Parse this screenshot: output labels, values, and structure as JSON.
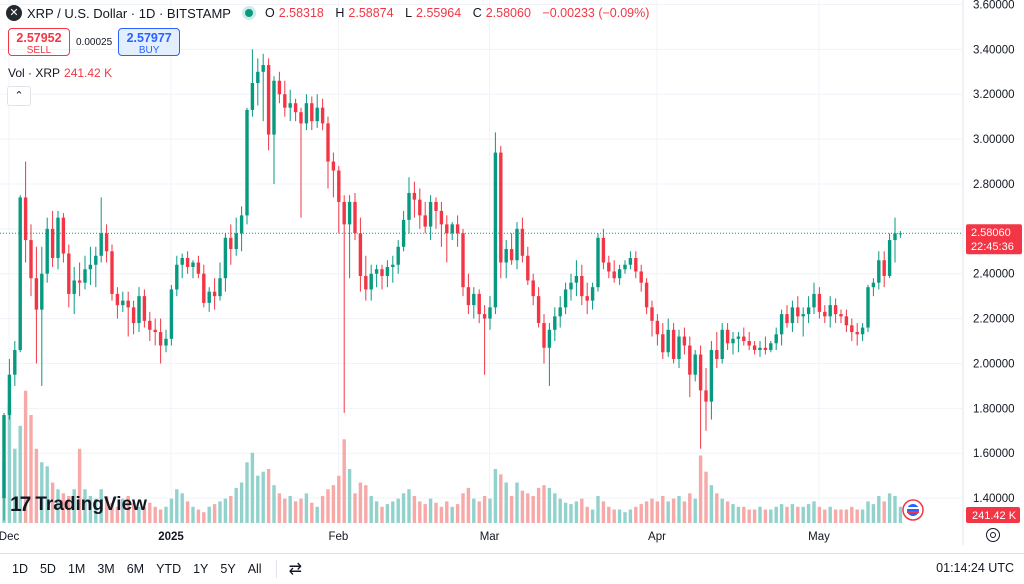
{
  "header": {
    "symbol_logo": "✕",
    "title": "XRP / U.S. Dollar · 1D · BITSTAMP",
    "ohlc": {
      "o_label": "O",
      "o": "2.58318",
      "h_label": "H",
      "h": "2.58874",
      "l_label": "L",
      "l": "2.55964",
      "c_label": "C",
      "c": "2.58060",
      "change": "−0.00233 (−0.09%)"
    }
  },
  "trade": {
    "sell_price": "2.57952",
    "sell_label": "SELL",
    "spread": "0.00025",
    "buy_price": "2.57977",
    "buy_label": "BUY"
  },
  "volume_legend": {
    "label": "Vol · XRP",
    "value": "241.42 K"
  },
  "branding": {
    "name": "TradingView"
  },
  "price_label": {
    "value": "2.58060",
    "countdown": "22:45:36"
  },
  "volume_label": "241.42 K",
  "bottom_bar": {
    "ranges": [
      "1D",
      "5D",
      "1M",
      "3M",
      "6M",
      "YTD",
      "1Y",
      "5Y",
      "All"
    ],
    "compare_icon": "compare-icon",
    "clock": "01:14:24 UTC"
  },
  "colors": {
    "up": "#089981",
    "down": "#f23645",
    "up_volume": "#92d2cc",
    "down_volume": "#f7a9a7",
    "accent": "#2962ff"
  },
  "chart_data": {
    "type": "candlestick",
    "y_axis": {
      "ticks": [
        "3.60000",
        "3.40000",
        "3.20000",
        "3.00000",
        "2.80000",
        "2.60000",
        "2.40000",
        "2.20000",
        "2.00000",
        "1.80000",
        "1.60000",
        "1.40000"
      ],
      "ylim": [
        1.28,
        3.62
      ]
    },
    "x_axis": {
      "ticks": [
        "Dec",
        "2025",
        "Feb",
        "Mar",
        "Apr",
        "May"
      ]
    },
    "current_price": 2.5806,
    "grid": true,
    "ohlc": [
      [
        1.4,
        1.78,
        1.3,
        1.77
      ],
      [
        1.77,
        2.02,
        1.75,
        1.95
      ],
      [
        1.95,
        2.1,
        1.9,
        2.06
      ],
      [
        2.06,
        2.75,
        2.05,
        2.74
      ],
      [
        2.74,
        2.9,
        2.45,
        2.55
      ],
      [
        2.55,
        2.62,
        2.3,
        2.38
      ],
      [
        2.38,
        2.52,
        2.0,
        2.24
      ],
      [
        2.24,
        2.52,
        1.9,
        2.4
      ],
      [
        2.4,
        2.65,
        2.36,
        2.6
      ],
      [
        2.6,
        2.68,
        2.43,
        2.47
      ],
      [
        2.47,
        2.68,
        2.42,
        2.65
      ],
      [
        2.65,
        2.67,
        2.45,
        2.49
      ],
      [
        2.49,
        2.53,
        2.25,
        2.31
      ],
      [
        2.31,
        2.43,
        2.22,
        2.37
      ],
      [
        2.37,
        2.45,
        2.3,
        2.36
      ],
      [
        2.36,
        2.48,
        2.33,
        2.42
      ],
      [
        2.42,
        2.52,
        2.35,
        2.44
      ],
      [
        2.44,
        2.52,
        2.34,
        2.48
      ],
      [
        2.48,
        2.74,
        2.45,
        2.58
      ],
      [
        2.58,
        2.62,
        2.45,
        2.5
      ],
      [
        2.5,
        2.53,
        2.28,
        2.31
      ],
      [
        2.31,
        2.34,
        2.2,
        2.26
      ],
      [
        2.26,
        2.32,
        2.23,
        2.28
      ],
      [
        2.28,
        2.32,
        2.12,
        2.25
      ],
      [
        2.25,
        2.28,
        2.13,
        2.18
      ],
      [
        2.18,
        2.34,
        2.14,
        2.3
      ],
      [
        2.3,
        2.33,
        2.16,
        2.19
      ],
      [
        2.19,
        2.23,
        2.1,
        2.15
      ],
      [
        2.15,
        2.2,
        2.08,
        2.14
      ],
      [
        2.14,
        2.2,
        2.0,
        2.08
      ],
      [
        2.08,
        2.15,
        2.05,
        2.11
      ],
      [
        2.11,
        2.35,
        2.08,
        2.33
      ],
      [
        2.33,
        2.48,
        2.3,
        2.44
      ],
      [
        2.44,
        2.49,
        2.38,
        2.47
      ],
      [
        2.47,
        2.5,
        2.4,
        2.43
      ],
      [
        2.43,
        2.46,
        2.38,
        2.45
      ],
      [
        2.45,
        2.48,
        2.38,
        2.4
      ],
      [
        2.4,
        2.44,
        2.25,
        2.27
      ],
      [
        2.27,
        2.34,
        2.23,
        2.32
      ],
      [
        2.32,
        2.38,
        2.24,
        2.3
      ],
      [
        2.3,
        2.45,
        2.28,
        2.38
      ],
      [
        2.38,
        2.58,
        2.32,
        2.56
      ],
      [
        2.56,
        2.62,
        2.44,
        2.51
      ],
      [
        2.51,
        2.65,
        2.48,
        2.58
      ],
      [
        2.58,
        2.7,
        2.5,
        2.66
      ],
      [
        2.66,
        3.14,
        2.62,
        3.13
      ],
      [
        3.13,
        3.4,
        3.1,
        3.25
      ],
      [
        3.25,
        3.36,
        3.15,
        3.3
      ],
      [
        3.3,
        3.38,
        3.08,
        3.33
      ],
      [
        3.33,
        3.36,
        2.95,
        3.02
      ],
      [
        3.02,
        3.28,
        2.8,
        3.26
      ],
      [
        3.26,
        3.3,
        3.16,
        3.2
      ],
      [
        3.2,
        3.26,
        3.1,
        3.14
      ],
      [
        3.14,
        3.22,
        3.08,
        3.16
      ],
      [
        3.16,
        3.18,
        3.08,
        3.12
      ],
      [
        3.12,
        3.14,
        2.65,
        3.07
      ],
      [
        3.07,
        3.2,
        3.04,
        3.16
      ],
      [
        3.16,
        3.19,
        3.04,
        3.08
      ],
      [
        3.08,
        3.2,
        3.05,
        3.14
      ],
      [
        3.14,
        3.18,
        3.04,
        3.07
      ],
      [
        3.07,
        3.1,
        2.78,
        2.9
      ],
      [
        2.9,
        2.94,
        2.74,
        2.86
      ],
      [
        2.86,
        2.88,
        2.58,
        2.72
      ],
      [
        2.72,
        2.75,
        1.78,
        2.62
      ],
      [
        2.62,
        2.75,
        2.38,
        2.72
      ],
      [
        2.72,
        2.76,
        2.55,
        2.58
      ],
      [
        2.58,
        2.65,
        2.32,
        2.39
      ],
      [
        2.39,
        2.48,
        2.28,
        2.33
      ],
      [
        2.33,
        2.44,
        2.28,
        2.4
      ],
      [
        2.4,
        2.44,
        2.34,
        2.42
      ],
      [
        2.42,
        2.44,
        2.33,
        2.39
      ],
      [
        2.39,
        2.46,
        2.34,
        2.43
      ],
      [
        2.43,
        2.48,
        2.36,
        2.44
      ],
      [
        2.44,
        2.55,
        2.4,
        2.52
      ],
      [
        2.52,
        2.68,
        2.5,
        2.64
      ],
      [
        2.64,
        2.83,
        2.58,
        2.76
      ],
      [
        2.76,
        2.81,
        2.65,
        2.73
      ],
      [
        2.73,
        2.78,
        2.6,
        2.66
      ],
      [
        2.66,
        2.72,
        2.58,
        2.61
      ],
      [
        2.61,
        2.75,
        2.55,
        2.72
      ],
      [
        2.72,
        2.74,
        2.6,
        2.68
      ],
      [
        2.68,
        2.72,
        2.52,
        2.62
      ],
      [
        2.62,
        2.66,
        2.45,
        2.58
      ],
      [
        2.58,
        2.63,
        2.55,
        2.62
      ],
      [
        2.62,
        2.66,
        2.52,
        2.58
      ],
      [
        2.58,
        2.6,
        2.3,
        2.34
      ],
      [
        2.34,
        2.4,
        2.22,
        2.26
      ],
      [
        2.26,
        2.34,
        2.2,
        2.31
      ],
      [
        2.31,
        2.33,
        2.18,
        2.22
      ],
      [
        2.22,
        2.26,
        1.95,
        2.2
      ],
      [
        2.2,
        2.3,
        2.15,
        2.25
      ],
      [
        2.25,
        3.03,
        2.22,
        2.94
      ],
      [
        2.94,
        2.97,
        2.38,
        2.45
      ],
      [
        2.45,
        2.55,
        2.38,
        2.51
      ],
      [
        2.51,
        2.58,
        2.44,
        2.46
      ],
      [
        2.46,
        2.63,
        2.42,
        2.6
      ],
      [
        2.6,
        2.65,
        2.45,
        2.48
      ],
      [
        2.48,
        2.52,
        2.35,
        2.37
      ],
      [
        2.37,
        2.4,
        2.26,
        2.3
      ],
      [
        2.3,
        2.34,
        2.16,
        2.18
      ],
      [
        2.18,
        2.22,
        2.0,
        2.07
      ],
      [
        2.07,
        2.18,
        1.9,
        2.15
      ],
      [
        2.15,
        2.25,
        2.1,
        2.21
      ],
      [
        2.21,
        2.3,
        2.16,
        2.25
      ],
      [
        2.25,
        2.36,
        2.22,
        2.33
      ],
      [
        2.33,
        2.4,
        2.28,
        2.36
      ],
      [
        2.36,
        2.46,
        2.3,
        2.39
      ],
      [
        2.39,
        2.44,
        2.26,
        2.3
      ],
      [
        2.3,
        2.36,
        2.22,
        2.28
      ],
      [
        2.28,
        2.36,
        2.24,
        2.34
      ],
      [
        2.34,
        2.58,
        2.32,
        2.56
      ],
      [
        2.56,
        2.6,
        2.42,
        2.45
      ],
      [
        2.45,
        2.48,
        2.38,
        2.41
      ],
      [
        2.41,
        2.46,
        2.36,
        2.38
      ],
      [
        2.38,
        2.44,
        2.35,
        2.42
      ],
      [
        2.42,
        2.46,
        2.4,
        2.44
      ],
      [
        2.44,
        2.5,
        2.42,
        2.47
      ],
      [
        2.47,
        2.5,
        2.38,
        2.41
      ],
      [
        2.41,
        2.44,
        2.32,
        2.36
      ],
      [
        2.36,
        2.38,
        2.22,
        2.25
      ],
      [
        2.25,
        2.28,
        2.12,
        2.19
      ],
      [
        2.19,
        2.22,
        2.08,
        2.13
      ],
      [
        2.13,
        2.18,
        2.02,
        2.05
      ],
      [
        2.05,
        2.2,
        2.03,
        2.15
      ],
      [
        2.15,
        2.18,
        2.0,
        2.02
      ],
      [
        2.02,
        2.15,
        1.98,
        2.12
      ],
      [
        2.12,
        2.16,
        2.04,
        2.08
      ],
      [
        2.08,
        2.12,
        1.85,
        1.95
      ],
      [
        1.95,
        2.06,
        1.92,
        2.04
      ],
      [
        2.04,
        2.08,
        1.62,
        1.88
      ],
      [
        1.88,
        1.98,
        1.7,
        1.83
      ],
      [
        1.83,
        2.1,
        1.75,
        2.06
      ],
      [
        2.06,
        2.14,
        1.98,
        2.02
      ],
      [
        2.02,
        2.18,
        2.0,
        2.15
      ],
      [
        2.15,
        2.18,
        2.06,
        2.09
      ],
      [
        2.09,
        2.14,
        2.04,
        2.11
      ],
      [
        2.11,
        2.14,
        2.05,
        2.12
      ],
      [
        2.12,
        2.16,
        2.08,
        2.1
      ],
      [
        2.1,
        2.14,
        2.06,
        2.08
      ],
      [
        2.08,
        2.1,
        2.04,
        2.06
      ],
      [
        2.06,
        2.1,
        2.03,
        2.07
      ],
      [
        2.07,
        2.12,
        2.04,
        2.06
      ],
      [
        2.06,
        2.1,
        2.05,
        2.09
      ],
      [
        2.09,
        2.16,
        2.06,
        2.13
      ],
      [
        2.13,
        2.24,
        2.08,
        2.22
      ],
      [
        2.22,
        2.26,
        2.16,
        2.18
      ],
      [
        2.18,
        2.28,
        2.14,
        2.25
      ],
      [
        2.25,
        2.3,
        2.18,
        2.21
      ],
      [
        2.21,
        2.25,
        2.12,
        2.22
      ],
      [
        2.22,
        2.3,
        2.18,
        2.25
      ],
      [
        2.25,
        2.36,
        2.22,
        2.31
      ],
      [
        2.31,
        2.34,
        2.2,
        2.23
      ],
      [
        2.23,
        2.26,
        2.18,
        2.21
      ],
      [
        2.21,
        2.3,
        2.16,
        2.26
      ],
      [
        2.26,
        2.29,
        2.18,
        2.22
      ],
      [
        2.22,
        2.24,
        2.18,
        2.21
      ],
      [
        2.21,
        2.24,
        2.14,
        2.17
      ],
      [
        2.17,
        2.2,
        2.1,
        2.14
      ],
      [
        2.14,
        2.18,
        2.08,
        2.13
      ],
      [
        2.13,
        2.18,
        2.1,
        2.16
      ],
      [
        2.16,
        2.35,
        2.14,
        2.34
      ],
      [
        2.34,
        2.38,
        2.3,
        2.36
      ],
      [
        2.36,
        2.5,
        2.33,
        2.46
      ],
      [
        2.46,
        2.5,
        2.34,
        2.39
      ],
      [
        2.39,
        2.58,
        2.38,
        2.55
      ],
      [
        2.55,
        2.65,
        2.45,
        2.58
      ],
      [
        2.58,
        2.59,
        2.56,
        2.58
      ]
    ],
    "volume": [
      0.45,
      0.88,
      0.55,
      0.72,
      0.98,
      0.8,
      0.55,
      0.45,
      0.42,
      0.3,
      0.25,
      0.22,
      0.2,
      0.25,
      0.55,
      0.25,
      0.2,
      0.18,
      0.25,
      0.2,
      0.15,
      0.12,
      0.18,
      0.2,
      0.15,
      0.12,
      0.12,
      0.15,
      0.12,
      0.1,
      0.12,
      0.18,
      0.25,
      0.22,
      0.16,
      0.12,
      0.1,
      0.08,
      0.12,
      0.14,
      0.16,
      0.18,
      0.2,
      0.26,
      0.3,
      0.45,
      0.52,
      0.35,
      0.38,
      0.4,
      0.28,
      0.22,
      0.18,
      0.2,
      0.16,
      0.18,
      0.22,
      0.15,
      0.12,
      0.2,
      0.25,
      0.28,
      0.35,
      0.62,
      0.4,
      0.22,
      0.3,
      0.28,
      0.2,
      0.16,
      0.12,
      0.14,
      0.16,
      0.18,
      0.22,
      0.25,
      0.2,
      0.16,
      0.14,
      0.18,
      0.15,
      0.12,
      0.16,
      0.12,
      0.14,
      0.22,
      0.26,
      0.18,
      0.16,
      0.2,
      0.18,
      0.4,
      0.36,
      0.3,
      0.2,
      0.3,
      0.24,
      0.22,
      0.2,
      0.26,
      0.28,
      0.26,
      0.22,
      0.18,
      0.15,
      0.14,
      0.16,
      0.18,
      0.12,
      0.1,
      0.2,
      0.16,
      0.12,
      0.1,
      0.1,
      0.08,
      0.1,
      0.12,
      0.14,
      0.16,
      0.18,
      0.16,
      0.2,
      0.16,
      0.18,
      0.2,
      0.16,
      0.22,
      0.18,
      0.5,
      0.38,
      0.28,
      0.22,
      0.18,
      0.16,
      0.14,
      0.12,
      0.12,
      0.1,
      0.1,
      0.12,
      0.1,
      0.1,
      0.12,
      0.14,
      0.12,
      0.14,
      0.12,
      0.12,
      0.14,
      0.16,
      0.12,
      0.1,
      0.12,
      0.1,
      0.1,
      0.1,
      0.12,
      0.1,
      0.1,
      0.16,
      0.14,
      0.2,
      0.16,
      0.22,
      0.2,
      0.12
    ]
  }
}
